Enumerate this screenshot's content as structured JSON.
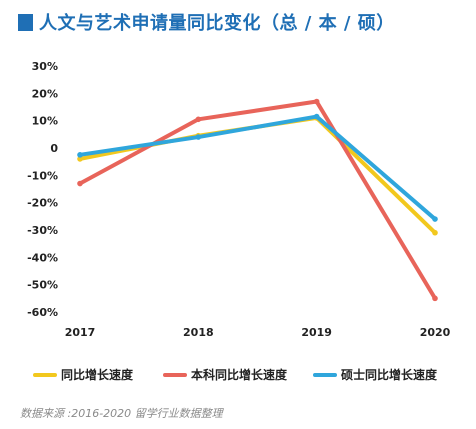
{
  "header": {
    "title": "人文与艺术申请量同比变化（总 / 本 / 硕）"
  },
  "chart_data": {
    "type": "line",
    "x": [
      "2017",
      "2018",
      "2019",
      "2020"
    ],
    "y_ticks": [
      "30%",
      "20%",
      "10%",
      "0",
      "-10%",
      "-20%",
      "-30%",
      "-40%",
      "-50%",
      "-60%"
    ],
    "ylim": [
      -60,
      30
    ],
    "grid": false,
    "legend_position": "bottom",
    "series": [
      {
        "name": "同比增长速度",
        "color": "#f2c81e",
        "values": [
          -4,
          4.5,
          11,
          -31
        ]
      },
      {
        "name": "本科同比增长速度",
        "color": "#e8645a",
        "values": [
          -13,
          10.5,
          17,
          -55
        ]
      },
      {
        "name": "硕士同比增长速度",
        "color": "#2fa6dc",
        "values": [
          -2.5,
          4,
          11.5,
          -26
        ]
      }
    ]
  },
  "footer": {
    "source": "数据来源 :2016-2020 留学行业数据整理"
  }
}
